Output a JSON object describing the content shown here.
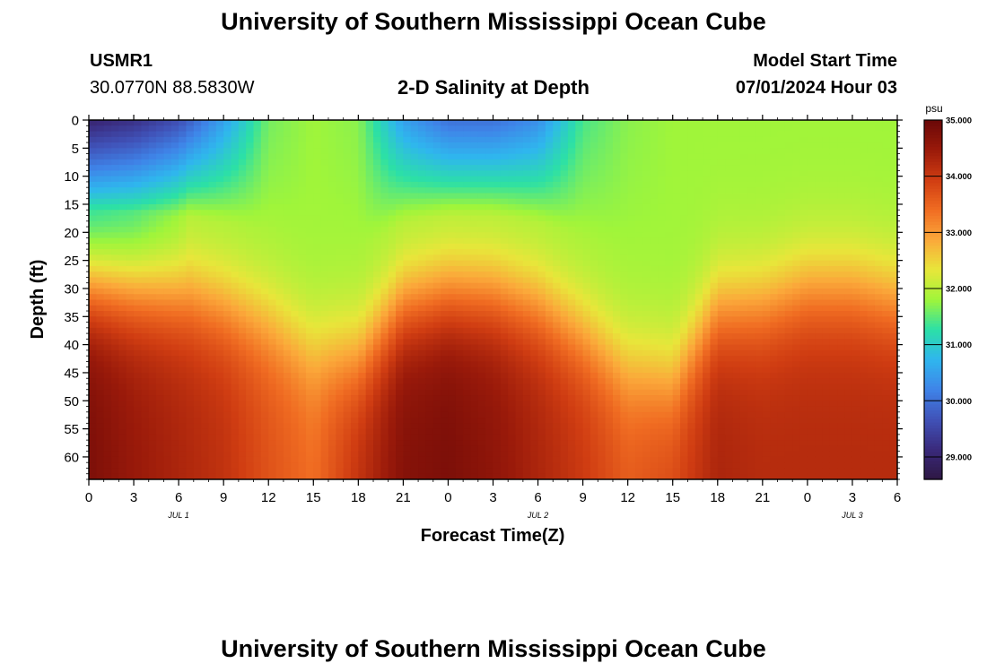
{
  "header": {
    "title_top": "University of Southern Mississippi Ocean Cube",
    "station_id": "USMR1",
    "station_coords": "30.0770N  88.5830W",
    "plot_title": "2-D Salinity at Depth",
    "model_start_label": "Model Start Time",
    "model_start_value": "07/01/2024 Hour 03",
    "title_bottom": "University of Southern Mississippi Ocean Cube"
  },
  "colorbar": {
    "unit": "psu",
    "tick_labels": [
      "35.000",
      "34.000",
      "33.000",
      "32.000",
      "31.000",
      "30.000",
      "29.000"
    ],
    "tick_values": [
      35,
      34,
      33,
      32,
      31,
      30,
      29
    ],
    "range": [
      28.6,
      35.0
    ],
    "colormap": [
      "#2e1743",
      "#3a2a7c",
      "#4052b8",
      "#3f84e8",
      "#2fb6ee",
      "#2ce0a6",
      "#a0f53a",
      "#e8e63a",
      "#fba83a",
      "#f06c22",
      "#d03d12",
      "#9a1a0a",
      "#6a0808"
    ]
  },
  "chart_data": {
    "type": "heatmap",
    "title": "2-D Salinity at Depth",
    "xlabel": "Forecast Time(Z)",
    "ylabel": "Depth (ft)",
    "x_tick_labels": [
      "0",
      "3",
      "6",
      "9",
      "12",
      "15",
      "18",
      "21",
      "0",
      "3",
      "6",
      "9",
      "12",
      "15",
      "18",
      "21",
      "0",
      "3",
      "6"
    ],
    "date_labels": [
      "JUL 1",
      "JUL 2",
      "JUL 3"
    ],
    "date_label_hours": [
      6,
      30,
      51
    ],
    "x_range_hours": [
      0,
      54
    ],
    "y_tick_labels": [
      "0",
      "5",
      "10",
      "15",
      "20",
      "25",
      "30",
      "35",
      "40",
      "45",
      "50",
      "55",
      "60"
    ],
    "y_range": [
      0,
      64
    ],
    "value_unit": "psu",
    "value_range": [
      28.6,
      35.0
    ],
    "time_hours": [
      0,
      3,
      6,
      9,
      12,
      15,
      18,
      21,
      24,
      27,
      30,
      33,
      36,
      39,
      42,
      45,
      48,
      51,
      54
    ],
    "halocline_depth_ft": [
      29,
      30,
      31,
      33,
      36,
      41,
      42,
      33,
      31,
      31,
      33,
      38,
      44,
      46,
      34,
      33,
      30,
      30,
      32
    ],
    "surface_salinity_psu": [
      29.0,
      29.2,
      29.6,
      30.5,
      31.6,
      31.8,
      31.7,
      30.5,
      30.0,
      30.0,
      30.3,
      31.4,
      31.7,
      31.8,
      31.8,
      31.8,
      31.8,
      31.8,
      31.8
    ],
    "bottom_salinity_psu": [
      34.8,
      34.5,
      34.3,
      34.1,
      33.7,
      33.4,
      34.1,
      34.7,
      34.8,
      34.6,
      34.3,
      34.0,
      33.6,
      33.8,
      34.3,
      34.2,
      34.2,
      34.2,
      34.2
    ]
  }
}
